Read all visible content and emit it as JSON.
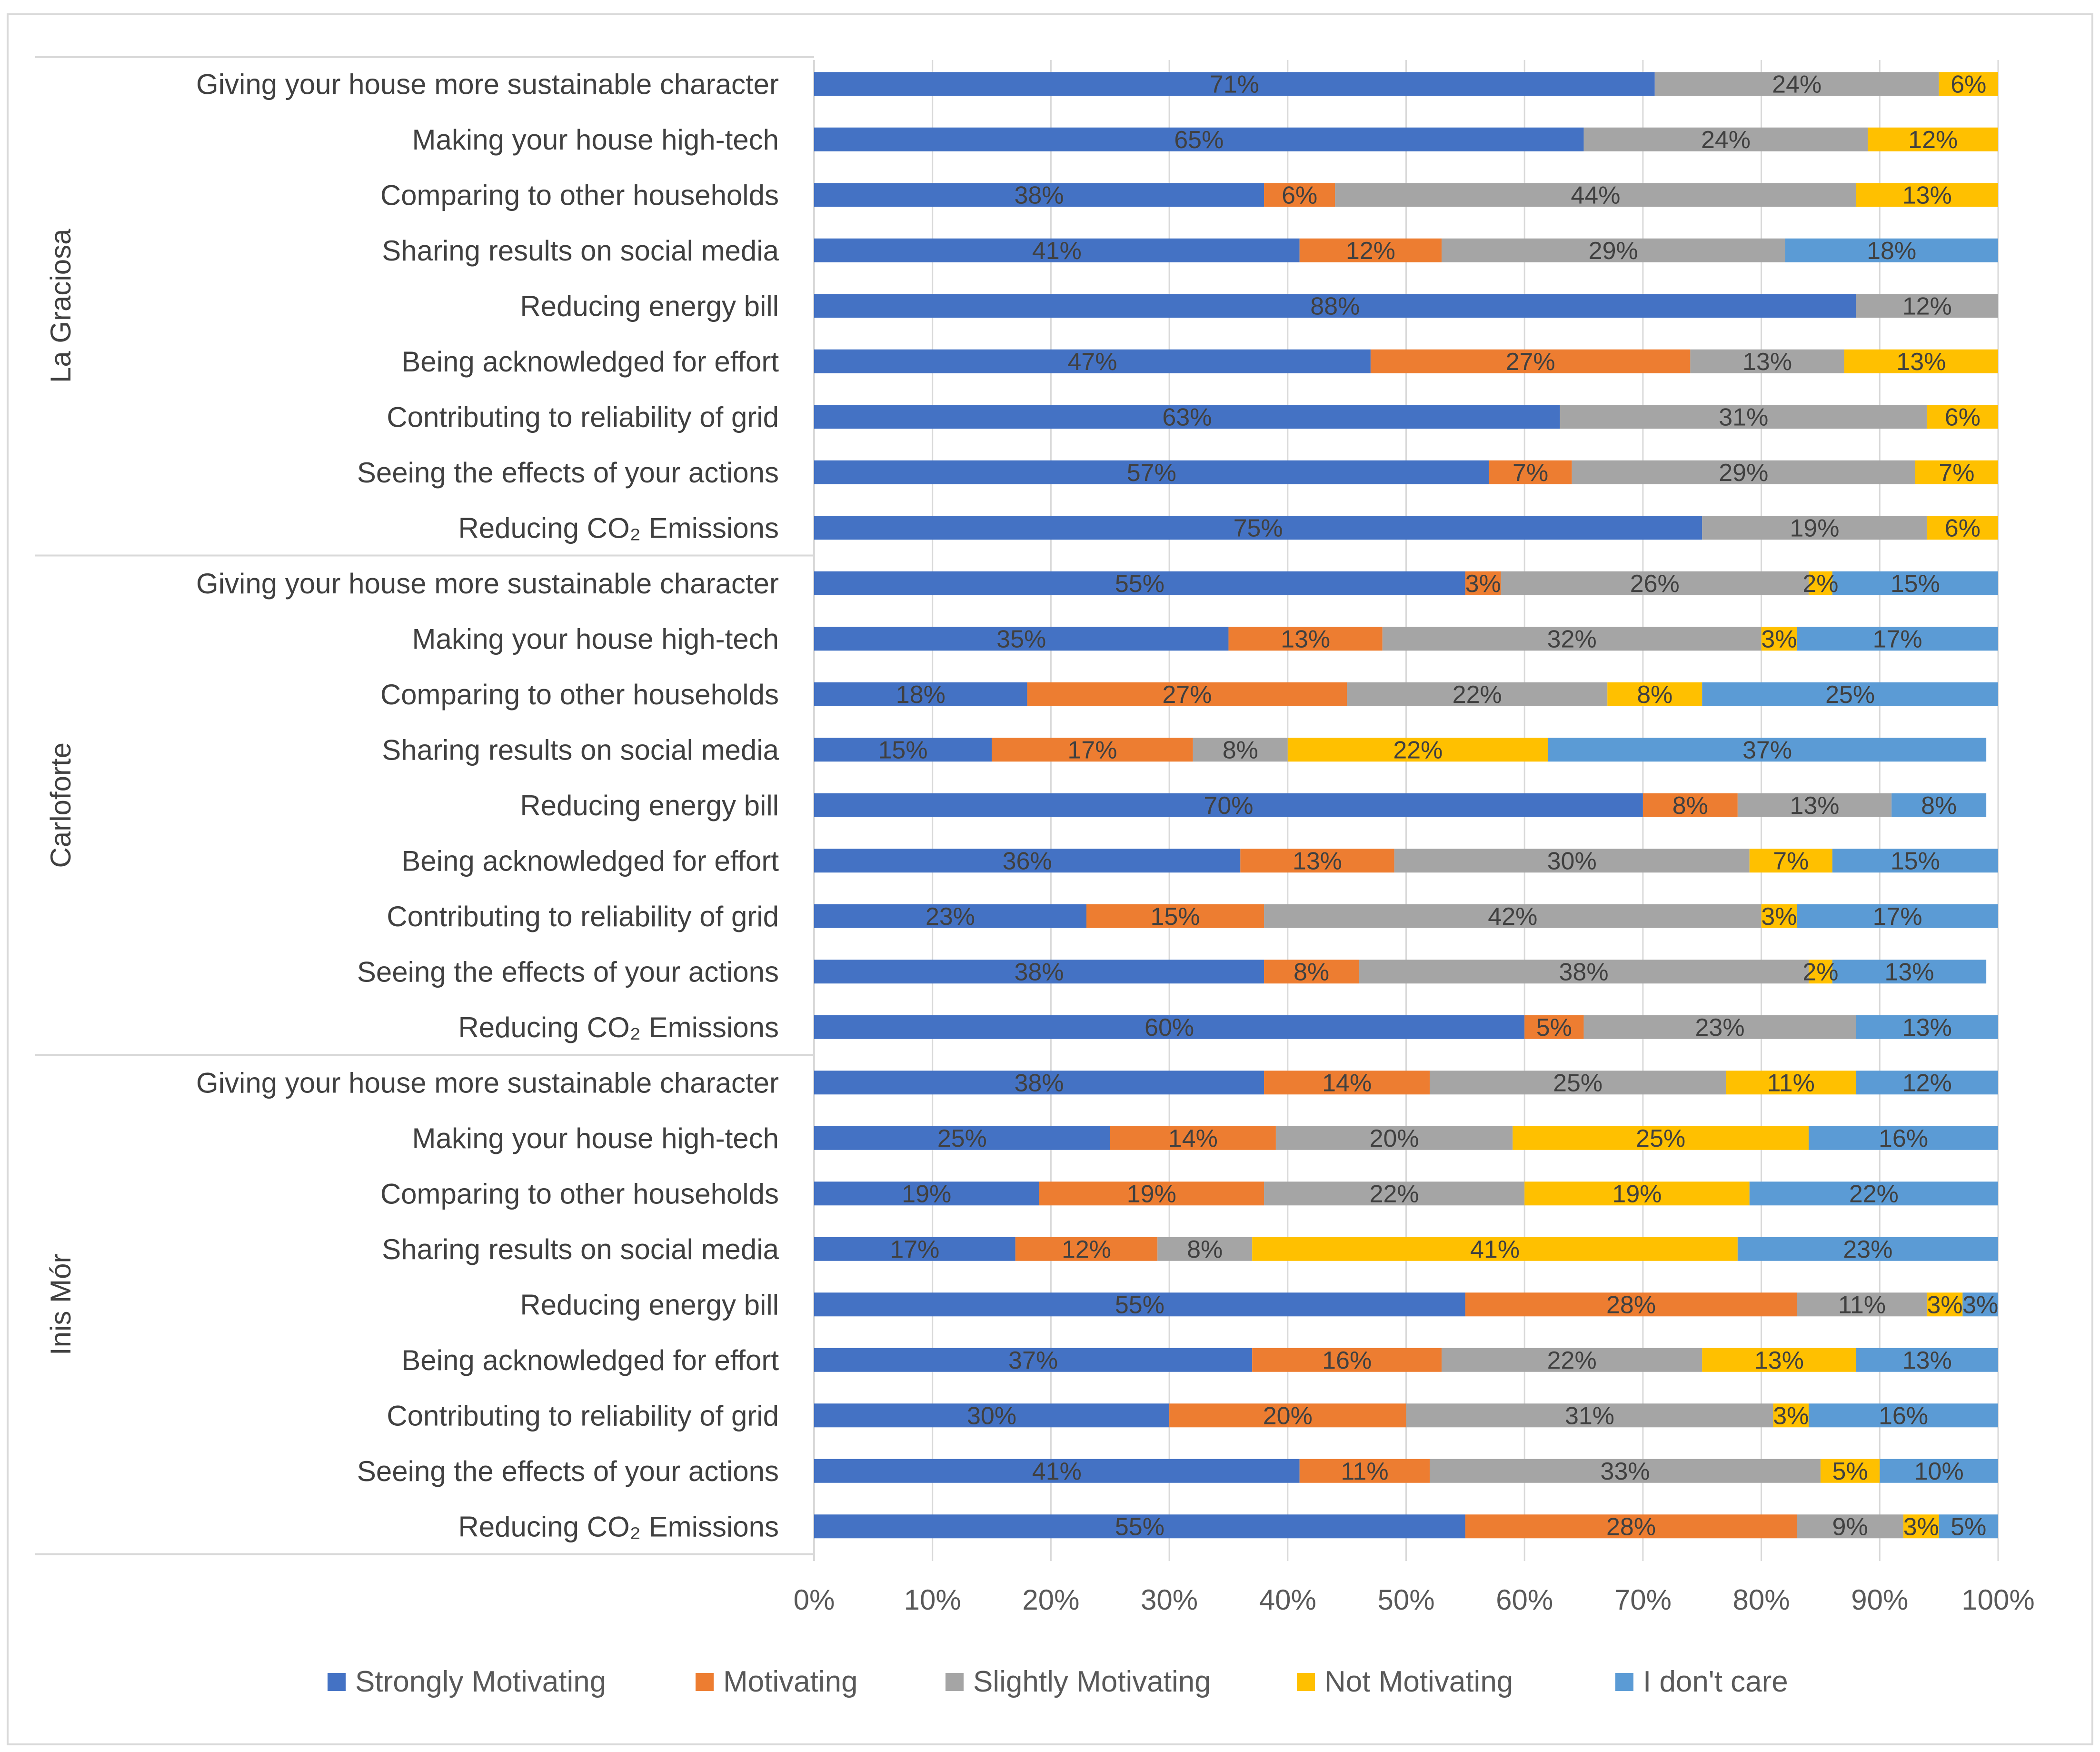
{
  "chart_data": {
    "type": "bar",
    "orientation": "horizontal",
    "stacked": "percent",
    "title": "",
    "xlabel": "",
    "ylabel": "",
    "xlim": [
      0,
      100
    ],
    "x_ticks": [
      "0%",
      "10%",
      "20%",
      "30%",
      "40%",
      "50%",
      "60%",
      "70%",
      "80%",
      "90%",
      "100%"
    ],
    "grid": "vertical",
    "legend_position": "bottom",
    "series": [
      {
        "name": "Strongly Motivating",
        "color": "#4472C4"
      },
      {
        "name": "Motivating",
        "color": "#ED7D31"
      },
      {
        "name": "Slightly Motivating",
        "color": "#A5A5A5"
      },
      {
        "name": "Not Motivating",
        "color": "#FFC000"
      },
      {
        "name": "I don't care",
        "color": "#5B9BD5"
      }
    ],
    "groups": [
      {
        "name": "La Graciosa",
        "rows": [
          {
            "label": "Giving your house more sustainable character",
            "values": [
              71,
              0,
              24,
              6,
              0
            ],
            "labels": [
              "71%",
              "",
              "24%",
              "6%",
              ""
            ]
          },
          {
            "label": "Making your house high-tech",
            "values": [
              65,
              0,
              24,
              12,
              0
            ],
            "labels": [
              "65%",
              "",
              "24%",
              "12%",
              ""
            ]
          },
          {
            "label": "Comparing to other households",
            "values": [
              38,
              6,
              44,
              13,
              0
            ],
            "labels": [
              "38%",
              "6%",
              "44%",
              "13%",
              ""
            ]
          },
          {
            "label": "Sharing results on social media",
            "values": [
              41,
              12,
              29,
              0,
              18
            ],
            "labels": [
              "41%",
              "12%",
              "29%",
              "",
              "18%"
            ]
          },
          {
            "label": "Reducing energy bill",
            "values": [
              88,
              0,
              12,
              0,
              0
            ],
            "labels": [
              "88%",
              "",
              "12%",
              "",
              ""
            ]
          },
          {
            "label": "Being acknowledged for effort",
            "values": [
              47,
              27,
              13,
              13,
              0
            ],
            "labels": [
              "47%",
              "27%",
              "13%",
              "13%",
              ""
            ]
          },
          {
            "label": "Contributing to  reliability of grid",
            "values": [
              63,
              0,
              31,
              6,
              0
            ],
            "labels": [
              "63%",
              "",
              "31%",
              "6%",
              ""
            ]
          },
          {
            "label": "Seeing the effects of your actions",
            "values": [
              57,
              7,
              29,
              7,
              0
            ],
            "labels": [
              "57%",
              "7%",
              "29%",
              "7%",
              ""
            ]
          },
          {
            "label": "Reducing CO₂ Emissions",
            "values": [
              75,
              0,
              19,
              6,
              0
            ],
            "labels": [
              "75%",
              "",
              "19%",
              "6%",
              ""
            ]
          }
        ]
      },
      {
        "name": "Carloforte",
        "rows": [
          {
            "label": "Giving your house more sustainable character",
            "values": [
              55,
              3,
              26,
              2,
              15
            ],
            "labels": [
              "55%",
              "3%",
              "26%",
              "2%",
              "15%"
            ]
          },
          {
            "label": "Making your house high-tech",
            "values": [
              35,
              13,
              32,
              3,
              17
            ],
            "labels": [
              "35%",
              "13%",
              "32%",
              "3%",
              "17%"
            ]
          },
          {
            "label": "Comparing to other households",
            "values": [
              18,
              27,
              22,
              8,
              25
            ],
            "labels": [
              "18%",
              "27%",
              "22%",
              "8%",
              "25%"
            ]
          },
          {
            "label": "Sharing results on social media",
            "values": [
              15,
              17,
              8,
              22,
              37
            ],
            "labels": [
              "15%",
              "17%",
              "8%",
              "22%",
              "37%"
            ]
          },
          {
            "label": "Reducing energy bill",
            "values": [
              70,
              8,
              13,
              0,
              8
            ],
            "labels": [
              "70%",
              "8%",
              "13%",
              "",
              "8%"
            ]
          },
          {
            "label": "Being acknowledged for effort",
            "values": [
              36,
              13,
              30,
              7,
              15
            ],
            "labels": [
              "36%",
              "13%",
              "30%",
              "7%",
              "15%"
            ]
          },
          {
            "label": "Contributing to  reliability of grid",
            "values": [
              23,
              15,
              42,
              3,
              17
            ],
            "labels": [
              "23%",
              "15%",
              "42%",
              "3%",
              "17%"
            ]
          },
          {
            "label": "Seeing the effects of your actions",
            "values": [
              38,
              8,
              38,
              2,
              13
            ],
            "labels": [
              "38%",
              "8%",
              "38%",
              "2%",
              "13%"
            ]
          },
          {
            "label": "Reducing CO₂ Emissions",
            "values": [
              60,
              5,
              23,
              0,
              13
            ],
            "labels": [
              "60%",
              "5%",
              "23%",
              "",
              "13%"
            ]
          }
        ]
      },
      {
        "name": "Inis Mór",
        "rows": [
          {
            "label": "Giving your house more sustainable character",
            "values": [
              38,
              14,
              25,
              11,
              12
            ],
            "labels": [
              "38%",
              "14%",
              "25%",
              "11%",
              "12%"
            ]
          },
          {
            "label": "Making your house high-tech",
            "values": [
              25,
              14,
              20,
              25,
              16
            ],
            "labels": [
              "25%",
              "14%",
              "20%",
              "25%",
              "16%"
            ]
          },
          {
            "label": "Comparing to other households",
            "values": [
              19,
              19,
              22,
              19,
              22
            ],
            "labels": [
              "19%",
              "19%",
              "22%",
              "19%",
              "22%"
            ]
          },
          {
            "label": "Sharing results on social media",
            "values": [
              17,
              12,
              8,
              41,
              23
            ],
            "labels": [
              "17%",
              "12%",
              "8%",
              "41%",
              "23%"
            ]
          },
          {
            "label": "Reducing energy bill",
            "values": [
              55,
              28,
              11,
              3,
              3
            ],
            "labels": [
              "55%",
              "28%",
              "11%",
              "3%",
              "3%"
            ]
          },
          {
            "label": "Being acknowledged for effort",
            "values": [
              37,
              16,
              22,
              13,
              13
            ],
            "labels": [
              "37%",
              "16%",
              "22%",
              "13%",
              "13%"
            ]
          },
          {
            "label": "Contributing to  reliability of grid",
            "values": [
              30,
              20,
              31,
              3,
              16
            ],
            "labels": [
              "30%",
              "20%",
              "31%",
              "3%",
              "16%"
            ]
          },
          {
            "label": "Seeing the effects of your actions",
            "values": [
              41,
              11,
              33,
              5,
              10
            ],
            "labels": [
              "41%",
              "11%",
              "33%",
              "5%",
              "10%"
            ]
          },
          {
            "label": "Reducing CO₂ Emissions",
            "values": [
              55,
              28,
              9,
              3,
              5
            ],
            "labels": [
              "55%",
              "28%",
              "9%",
              "3%",
              "5%"
            ]
          }
        ]
      }
    ]
  }
}
